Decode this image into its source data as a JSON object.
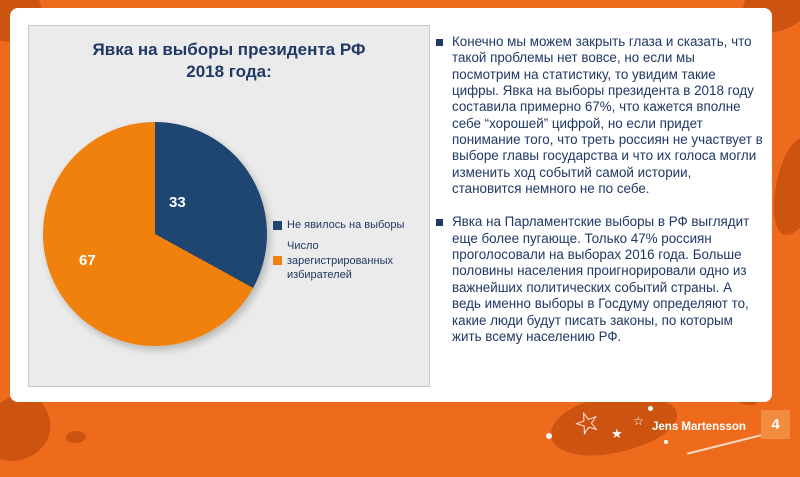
{
  "slide": {
    "chart": {
      "title_line1": "Явка на выборы президента РФ",
      "title_line2": "2018 года:",
      "slice_labels": {
        "not_voted": "33",
        "voted": "67"
      },
      "legend": {
        "item1": "Не явилось на выборы",
        "item2": "Число зарегистрированных избирателей"
      }
    },
    "bullets": {
      "first": "Конечно мы можем закрыть глаза и сказать, что такой проблемы нет вовсе, но если мы посмотрим на статистику, то увидим такие цифры. Явка на выборы президента в 2018 году составила примерно 67%, что кажется вполне себе “хорошей” цифрой, но если придет понимание того, что треть россиян не участвует в выборе главы государства и что их голоса могли изменить ход событий самой истории, становится немного не по себе.",
      "second": "Явка на Парламентские выборы в РФ выглядит еще более пугающе. Только 47% россиян проголосовали на выборах 2016 года. Больше половины населения проигнорировали одно из важнейших политических событий страны. А ведь именно выборы в Госдуму определяют то, какие люди будут писать законы, по которым жить всему населению РФ."
    },
    "footer": {
      "author": "Jens Martensson",
      "page_number": "4"
    },
    "colors": {
      "frame_orange": "#EE6A1C",
      "splatter_orange": "#CC5310",
      "pie_orange": "#F0810C",
      "pie_blue": "#1F4571",
      "text_navy": "#1F3864",
      "page_badge_orange": "#F28C3E"
    },
    "icons": {
      "star_big": "☆",
      "star_small": "★",
      "star_tiny": "☆"
    }
  },
  "chart_data": {
    "type": "pie",
    "title": "Явка на выборы президента РФ 2018 года:",
    "labels": [
      "Не явилось на выборы",
      "Число зарегистрированных избирателей"
    ],
    "values": [
      33,
      67
    ],
    "data_labels": [
      "33",
      "67"
    ],
    "colors": [
      "#1F4571",
      "#F0810C"
    ],
    "legend_position": "right",
    "background": "#EBEBEB"
  }
}
